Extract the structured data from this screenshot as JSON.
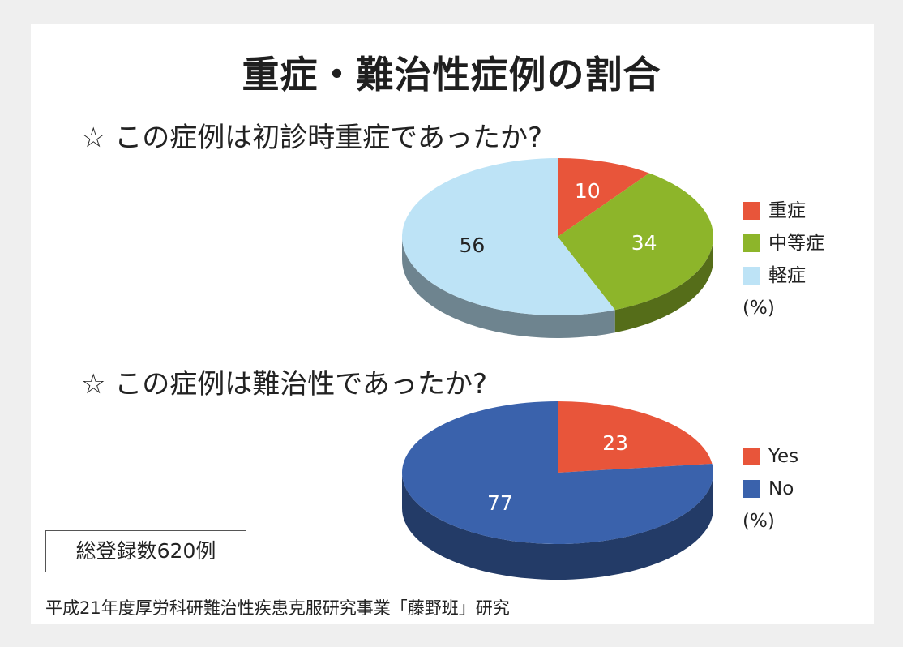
{
  "title": "重症・難治性症例の割合",
  "colors": {
    "severe": "#e8553a",
    "moderate": "#8db52a",
    "mild": "#bde3f6",
    "yes": "#e8553a",
    "no": "#3a62ac"
  },
  "chart_data": [
    {
      "type": "pie",
      "title": "☆ この症例は初診時重症であったか?",
      "unit": "(%)",
      "slices": [
        {
          "label": "重症",
          "value": 10,
          "color": "#e8553a"
        },
        {
          "label": "中等症",
          "value": 34,
          "color": "#8db52a"
        },
        {
          "label": "軽症",
          "value": 56,
          "color": "#bde3f6"
        }
      ],
      "legend": "right"
    },
    {
      "type": "pie",
      "title": "☆ この症例は難治性であったか?",
      "unit": "(%)",
      "slices": [
        {
          "label": "Yes",
          "value": 23,
          "color": "#e8553a"
        },
        {
          "label": "No",
          "value": 77,
          "color": "#3a62ac"
        }
      ],
      "legend": "right"
    }
  ],
  "total_cases": "総登録数620例",
  "source": "平成21年度厚労科研難治性疾患克服研究事業「藤野班」研究"
}
